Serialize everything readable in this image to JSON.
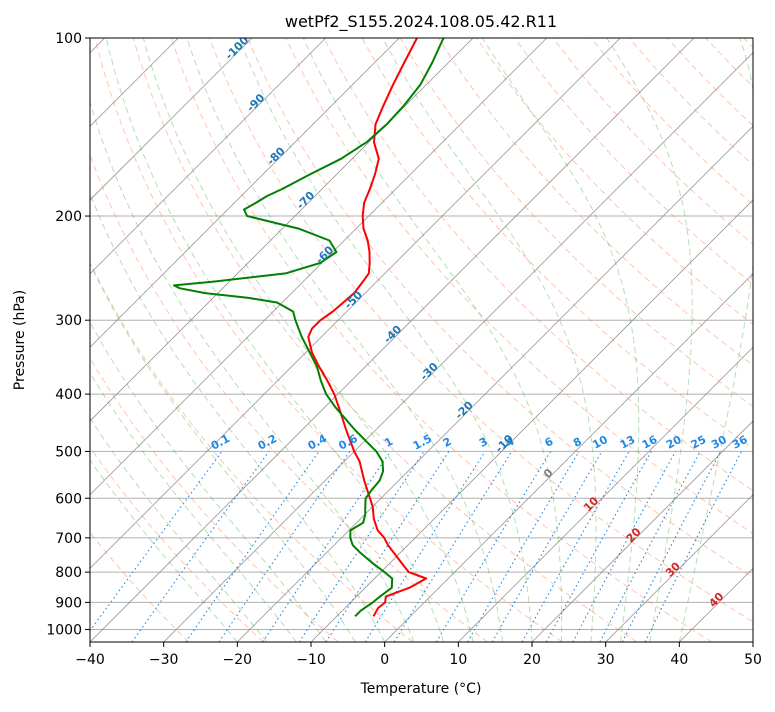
{
  "chart_data": {
    "type": "line",
    "title": "wetPf2_S155.2024.108.05.42.R11",
    "xlabel": "Temperature (°C)",
    "ylabel": "Pressure (hPa)",
    "xlim": [
      -40,
      50
    ],
    "ylim": [
      1050,
      100
    ],
    "y_scale": "log",
    "skew": true,
    "grid": true,
    "xticks": [
      -40,
      -30,
      -20,
      -10,
      0,
      10,
      20,
      30,
      40,
      50
    ],
    "yticks": [
      1000,
      900,
      800,
      700,
      600,
      500,
      400,
      300,
      200,
      100
    ],
    "colors": {
      "temperature": "#ff0000",
      "dewpoint": "#008000",
      "dry_adiabats": "#ff7f50",
      "moist_adiabats": "#2ca02c",
      "mixing_ratio": "#1e88e5",
      "isotherms": "#555555",
      "labels_cold": "#1f77b4",
      "labels_warm": "#d62728"
    },
    "series": [
      {
        "key": "temperature",
        "pressure": [
          950,
          920,
          900,
          880,
          850,
          820,
          800,
          780,
          750,
          720,
          700,
          680,
          650,
          620,
          600,
          560,
          520,
          500,
          460,
          420,
          400,
          380,
          360,
          340,
          320,
          310,
          300,
          290,
          280,
          270,
          260,
          250,
          240,
          230,
          220,
          210,
          200,
          190,
          180,
          170,
          160,
          150,
          140,
          130,
          120,
          110,
          100
        ],
        "temperature": [
          -5.0,
          -5.5,
          -5.3,
          -6.0,
          -4.0,
          -3.0,
          -6.2,
          -7.8,
          -10.2,
          -12.7,
          -14.2,
          -16.1,
          -18.2,
          -20.0,
          -21.5,
          -24.7,
          -27.9,
          -30.0,
          -34.0,
          -38.2,
          -40.5,
          -43.2,
          -46.2,
          -49.2,
          -51.8,
          -52.4,
          -52.4,
          -51.9,
          -51.7,
          -51.5,
          -51.8,
          -52.2,
          -53.5,
          -55.0,
          -56.8,
          -59.0,
          -60.8,
          -62.4,
          -63.5,
          -64.8,
          -66.4,
          -69.3,
          -71.5,
          -73.0,
          -74.5,
          -76.0,
          -77.6
        ]
      },
      {
        "key": "dewpoint",
        "pressure": [
          950,
          930,
          900,
          880,
          850,
          820,
          800,
          770,
          740,
          720,
          700,
          680,
          660,
          640,
          620,
          600,
          580,
          560,
          540,
          520,
          500,
          460,
          420,
          400,
          380,
          360,
          340,
          320,
          300,
          290,
          280,
          275,
          270,
          265,
          262,
          258,
          250,
          240,
          230,
          220,
          210,
          200,
          195,
          190,
          185,
          180,
          170,
          160,
          150,
          140,
          130,
          120,
          110,
          100
        ],
        "dewpoint": [
          -7.5,
          -7.5,
          -7.0,
          -6.8,
          -6.4,
          -7.6,
          -9.5,
          -12.6,
          -15.6,
          -17.5,
          -18.8,
          -19.8,
          -19.1,
          -19.9,
          -21.0,
          -22.1,
          -22.4,
          -22.6,
          -23.4,
          -24.8,
          -27.0,
          -32.8,
          -38.7,
          -41.6,
          -44.1,
          -46.5,
          -49.5,
          -52.7,
          -55.8,
          -57.3,
          -60.7,
          -65.2,
          -71.7,
          -75.8,
          -77.0,
          -72.0,
          -63.5,
          -60.2,
          -59.5,
          -62.0,
          -67.8,
          -76.5,
          -77.8,
          -77.1,
          -76.5,
          -75.4,
          -73.6,
          -71.5,
          -70.3,
          -70.0,
          -70.2,
          -70.8,
          -72.2,
          -74.0
        ]
      }
    ],
    "isotherm_labels": [
      -100,
      -90,
      -80,
      -70,
      -60,
      -50,
      -40,
      -30,
      -20,
      -10,
      0,
      10,
      20,
      30,
      40
    ],
    "mixing_ratio_labels": [
      0.1,
      0.2,
      0.4,
      0.6,
      1,
      1.5,
      2,
      3,
      4,
      6,
      8,
      10,
      13,
      16,
      20,
      25,
      30,
      36
    ],
    "mixing_ratio_label_text": [
      "0.1",
      "0.2",
      "0.4",
      "0.6",
      "1",
      "1.5",
      "2",
      "3",
      "4",
      "6",
      "8",
      "10",
      "13",
      "16",
      "20",
      "25",
      "30",
      "36"
    ]
  }
}
